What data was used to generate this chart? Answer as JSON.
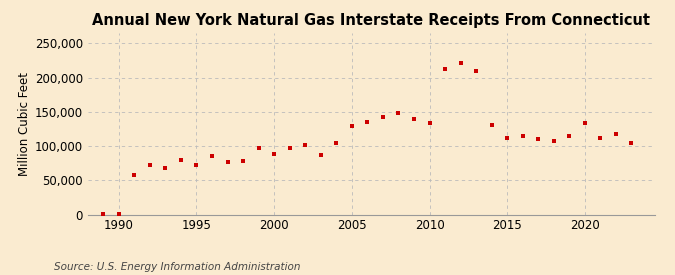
{
  "title": "Annual New York Natural Gas Interstate Receipts From Connecticut",
  "ylabel": "Million Cubic Feet",
  "source": "Source: U.S. Energy Information Administration",
  "background_color": "#faebd0",
  "marker_color": "#cc0000",
  "years": [
    1989,
    1990,
    1991,
    1992,
    1993,
    1994,
    1995,
    1996,
    1997,
    1998,
    1999,
    2000,
    2001,
    2002,
    2003,
    2004,
    2005,
    2006,
    2007,
    2008,
    2009,
    2010,
    2011,
    2012,
    2013,
    2014,
    2015,
    2016,
    2017,
    2018,
    2019,
    2020,
    2021,
    2022,
    2023
  ],
  "values": [
    500,
    800,
    58000,
    72000,
    68000,
    79000,
    73000,
    86000,
    76000,
    78000,
    97000,
    89000,
    97000,
    102000,
    87000,
    105000,
    129000,
    135000,
    143000,
    148000,
    140000,
    133000,
    212000,
    221000,
    209000,
    131000,
    112000,
    114000,
    110000,
    107000,
    115000,
    133000,
    112000,
    117000,
    105000
  ],
  "xlim": [
    1988.0,
    2024.5
  ],
  "ylim": [
    0,
    265000
  ],
  "yticks": [
    0,
    50000,
    100000,
    150000,
    200000,
    250000
  ],
  "ytick_labels": [
    "0",
    "50,000",
    "100,000",
    "150,000",
    "200,000",
    "250,000"
  ],
  "xticks": [
    1990,
    1995,
    2000,
    2005,
    2010,
    2015,
    2020
  ],
  "grid_color": "#bbbbbb",
  "title_fontsize": 10.5,
  "axis_fontsize": 8.5,
  "source_fontsize": 7.5
}
